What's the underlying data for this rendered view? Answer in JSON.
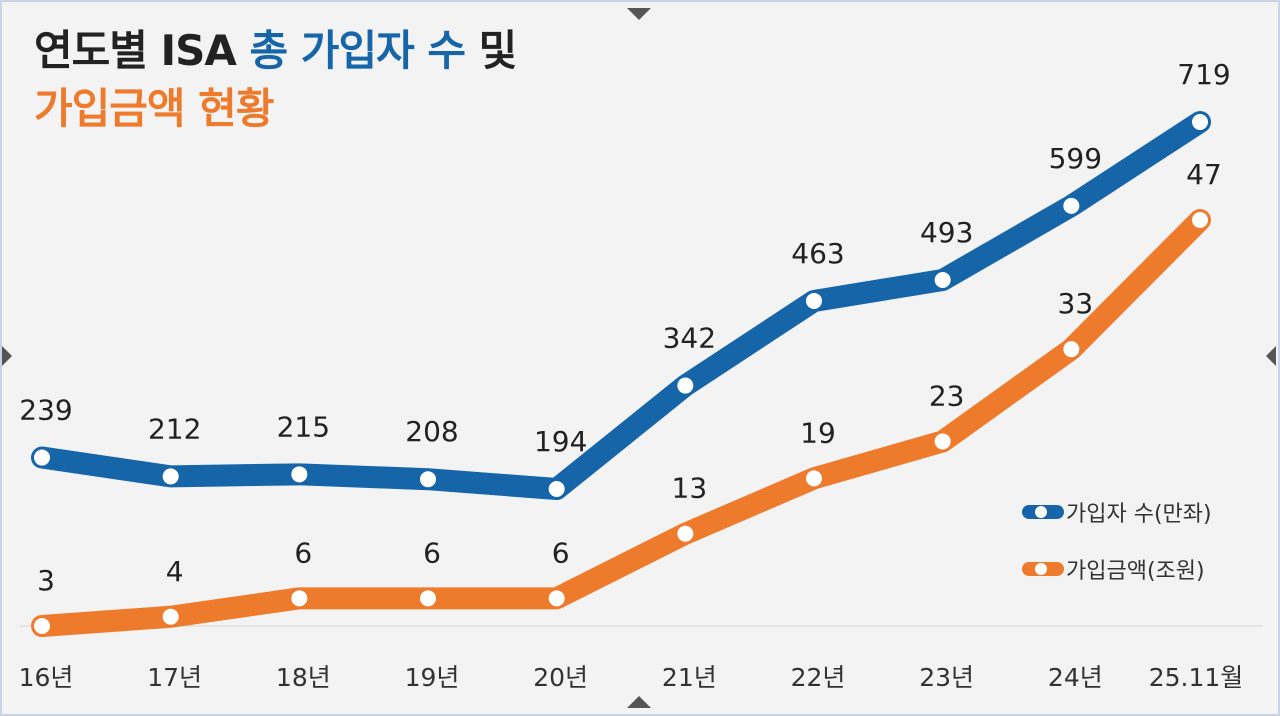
{
  "title": {
    "line1_part1": "연도별 ISA ",
    "line1_part2": "총 가입자 수",
    "line1_part3": " 및",
    "line2": "가입금액 현황"
  },
  "colors": {
    "subscribers": "#1565a8",
    "amount": "#ee7a2c",
    "text": "#222222",
    "background": "#f3f3f3"
  },
  "chart_data": {
    "type": "line",
    "categories": [
      "16년",
      "17년",
      "18년",
      "19년",
      "20년",
      "21년",
      "22년",
      "23년",
      "24년",
      "25.11월"
    ],
    "series": [
      {
        "name": "가입자 수(만좌)",
        "values": [
          239,
          212,
          215,
          208,
          194,
          342,
          463,
          493,
          599,
          719
        ],
        "labels": [
          "239",
          "212",
          "215",
          "208",
          "194",
          "342",
          "463",
          "493",
          "599",
          "719"
        ]
      },
      {
        "name": "가입금액(조원)",
        "values": [
          3,
          4,
          6,
          6,
          6,
          13,
          19,
          23,
          33,
          47
        ],
        "labels": [
          "3",
          "4",
          "6",
          "6",
          "6",
          "13",
          "19",
          "23",
          "33",
          "47"
        ]
      }
    ],
    "legend": {
      "position": "right",
      "subscribers_label": "가입자 수(만좌)",
      "amount_label": "가입금액(조원)"
    },
    "grid": false
  }
}
